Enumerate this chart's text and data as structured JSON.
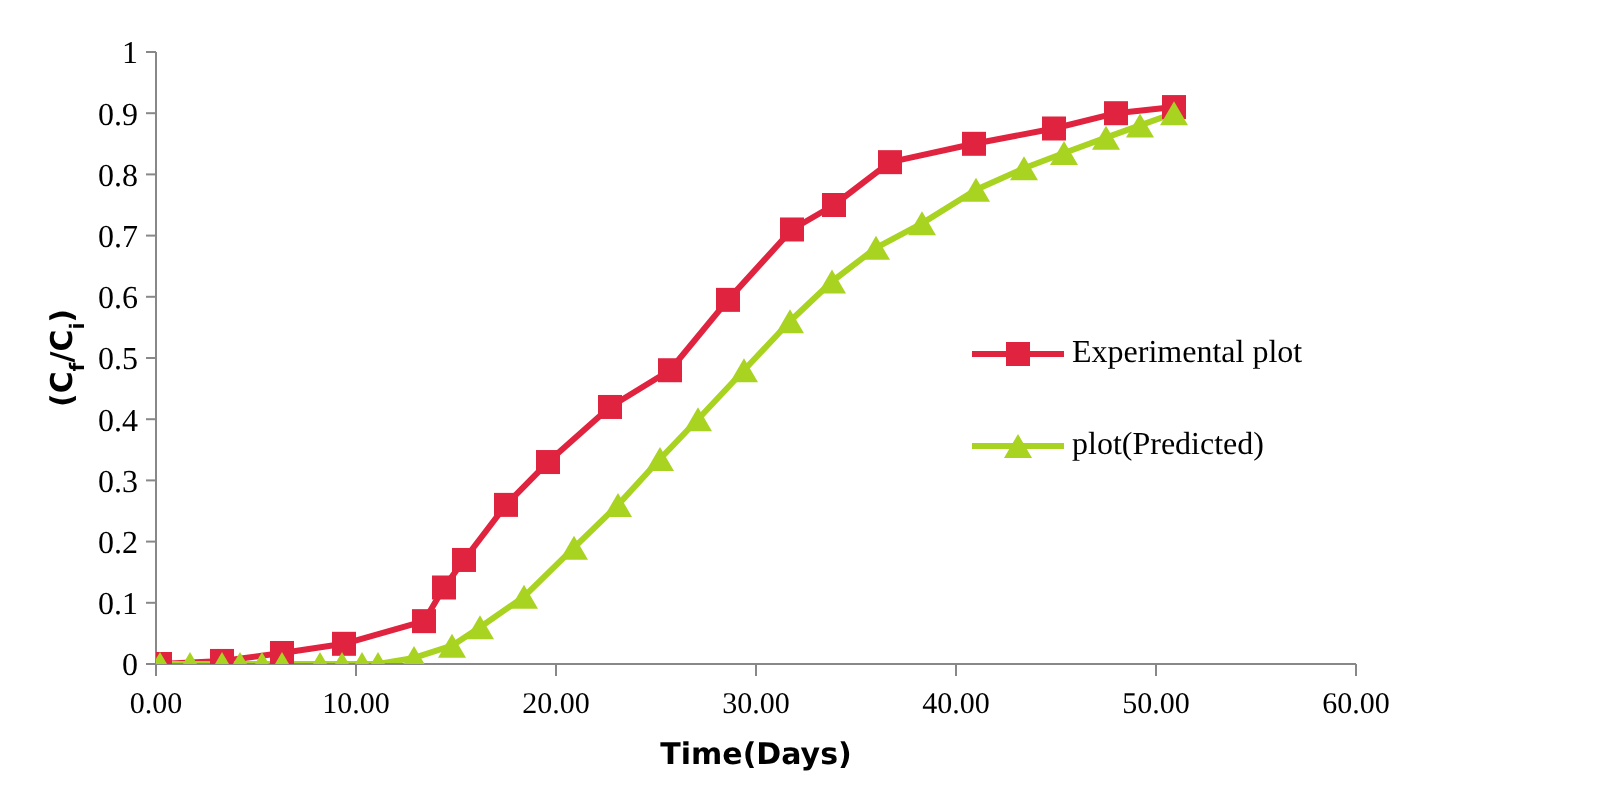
{
  "chart_data": {
    "type": "line",
    "xlabel": "Time(Days)",
    "ylabel": "(C$_{f}$/C$_{i}$)",
    "xlim": [
      0,
      60
    ],
    "xticks": [
      {
        "value": 0,
        "label": "0.00"
      },
      {
        "value": 10,
        "label": "10.00"
      },
      {
        "value": 20,
        "label": "20.00"
      },
      {
        "value": 30,
        "label": "30.00"
      },
      {
        "value": 40,
        "label": "40.00"
      },
      {
        "value": 50,
        "label": "50.00"
      },
      {
        "value": 60,
        "label": "60.00"
      }
    ],
    "ylim": [
      0,
      1
    ],
    "yticks": [
      0,
      0.1,
      0.2,
      0.3,
      0.4,
      0.5,
      0.6,
      0.7,
      0.8,
      0.9,
      1
    ],
    "grid": false,
    "legend": "right",
    "line_style": "solid",
    "series": [
      {
        "name": "Experimental plot",
        "color": "#e0233f",
        "marker": "square",
        "x": [
          0.2,
          3.3,
          6.3,
          9.4,
          13.4,
          14.4,
          15.4,
          17.5,
          19.6,
          22.7,
          25.7,
          28.6,
          31.8,
          33.9,
          36.7,
          40.9,
          44.9,
          48,
          50.9
        ],
        "values": [
          0,
          0.005,
          0.018,
          0.033,
          0.07,
          0.125,
          0.17,
          0.26,
          0.33,
          0.42,
          0.48,
          0.595,
          0.71,
          0.75,
          0.82,
          0.85,
          0.875,
          0.9,
          0.91
        ]
      },
      {
        "name": "plot(Predicted)",
        "color": "#a8d320",
        "marker": "triangle",
        "x": [
          0.2,
          1.7,
          3.3,
          4.2,
          5.3,
          6.3,
          8.2,
          9.3,
          10.3,
          11.1,
          12.9,
          14.8,
          16.2,
          18.4,
          20.9,
          23.1,
          25.2,
          27.1,
          29.4,
          31.7,
          33.8,
          36,
          38.3,
          41,
          43.4,
          45.4,
          47.5,
          49.2,
          50.9
        ],
        "values": [
          0,
          0,
          0,
          0,
          0,
          0,
          0,
          0,
          0,
          0,
          0.01,
          0.03,
          0.06,
          0.11,
          0.19,
          0.26,
          0.335,
          0.4,
          0.48,
          0.56,
          0.625,
          0.68,
          0.72,
          0.775,
          0.81,
          0.835,
          0.86,
          0.88,
          0.9
        ]
      }
    ]
  }
}
